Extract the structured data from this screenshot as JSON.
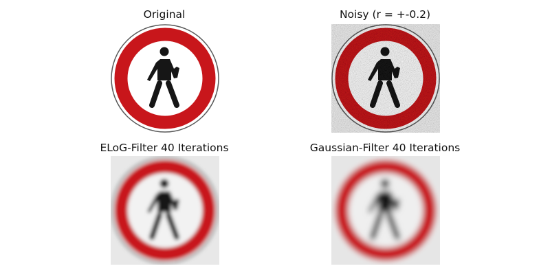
{
  "panels": [
    {
      "title": "Original",
      "image": "no-pedestrians-sign"
    },
    {
      "title": "Noisy (r = +-0.2)",
      "image": "no-pedestrians-sign-noisy"
    },
    {
      "title": "ELoG-Filter 40 Iterations",
      "image": "no-pedestrians-sign-elog-filtered"
    },
    {
      "title": "Gaussian-Filter 40 Iterations",
      "image": "no-pedestrians-sign-gaussian-blurred"
    }
  ],
  "colors": {
    "sign_red": "#c8161b",
    "ring_gray": "#5a5a5a",
    "figure_black": "#161616",
    "background": "#ffffff"
  }
}
